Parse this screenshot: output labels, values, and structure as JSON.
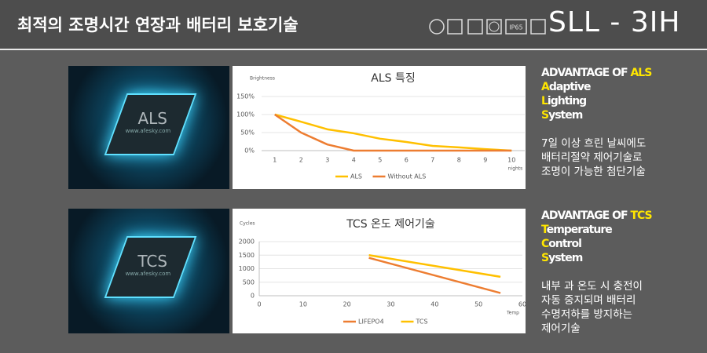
{
  "header": {
    "title": "최적의 조명시간 연장과 배터리 보호기술",
    "icon_label": "IP65",
    "model": "SLL - 3IH"
  },
  "images": [
    {
      "label": "ALS",
      "url": "www.afesky.com"
    },
    {
      "label": "TCS",
      "url": "www.afesky.com"
    }
  ],
  "panels": [
    {
      "heading": "ADVANTAGE OF ",
      "highlight": "ALS",
      "words": [
        {
          "initial": "A",
          "rest": "daptive"
        },
        {
          "initial": "L",
          "rest": "ighting"
        },
        {
          "initial": "S",
          "rest": "ystem"
        }
      ],
      "lines": [
        "7일 이상 흐린 날씨에도",
        "배터리절약 제어기술로",
        "조명이 가능한 첨단기술"
      ]
    },
    {
      "heading": "ADVANTAGE OF ",
      "highlight": "TCS",
      "words": [
        {
          "initial": "T",
          "rest": "emperature"
        },
        {
          "initial": "C",
          "rest": "ontrol"
        },
        {
          "initial": "S",
          "rest": "ystem"
        }
      ],
      "lines": [
        "내부 과 온도 시 충전이",
        "자동 중지되며 배터리",
        "수명저하를 방지하는",
        "제어기술"
      ]
    }
  ],
  "chart_data": [
    {
      "type": "line",
      "title": "ALS 특징",
      "y_label": "Brightness",
      "x_label": "nights",
      "categories": [
        1,
        2,
        3,
        4,
        5,
        6,
        7,
        8,
        9,
        10
      ],
      "series": [
        {
          "name": "ALS",
          "color": "#ffc000",
          "values": [
            100,
            80,
            59,
            48,
            33,
            24,
            13,
            9,
            4,
            0
          ]
        },
        {
          "name": "Without ALS",
          "color": "#ed7d31",
          "values": [
            100,
            50,
            17,
            0,
            0,
            0,
            0,
            0,
            0,
            0
          ]
        }
      ],
      "ylim": [
        0,
        150
      ],
      "yticks": [
        {
          "value": 0,
          "label": "0%"
        },
        {
          "value": 50,
          "label": "50%"
        },
        {
          "value": 100,
          "label": "100%"
        },
        {
          "value": 150,
          "label": "150%"
        }
      ],
      "grid": true,
      "legend": "bottom"
    },
    {
      "type": "line",
      "title": "TCS 온도 제어기술",
      "y_label": "Cycles",
      "x_label": "Temp",
      "series": [
        {
          "name": "LIFEPO4",
          "color": "#ed7d31",
          "x": [
            25,
            55
          ],
          "values": [
            1400,
            100
          ]
        },
        {
          "name": "TCS",
          "color": "#ffc000",
          "x": [
            25,
            55
          ],
          "values": [
            1500,
            700
          ]
        }
      ],
      "xlim": [
        0,
        60
      ],
      "xticks": [
        0,
        10,
        20,
        30,
        40,
        50,
        60
      ],
      "ylim": [
        0,
        2000
      ],
      "yticks": [
        0,
        500,
        1000,
        1500,
        2000
      ],
      "grid": true,
      "legend": "bottom"
    }
  ]
}
